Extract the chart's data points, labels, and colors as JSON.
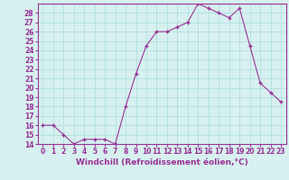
{
  "x": [
    0,
    1,
    2,
    3,
    4,
    5,
    6,
    7,
    8,
    9,
    10,
    11,
    12,
    13,
    14,
    15,
    16,
    17,
    18,
    19,
    20,
    21,
    22,
    23
  ],
  "y": [
    16.0,
    16.0,
    15.0,
    14.0,
    14.5,
    14.5,
    14.5,
    14.0,
    18.0,
    21.5,
    24.5,
    26.0,
    26.0,
    26.5,
    27.0,
    29.0,
    28.5,
    28.0,
    27.5,
    28.5,
    24.5,
    20.5,
    19.5,
    18.5
  ],
  "line_color": "#993399",
  "marker": "+",
  "marker_size": 3,
  "background_color": "#d7f0f0",
  "grid_color": "#aadddd",
  "xlabel": "Windchill (Refroidissement éolien,°C)",
  "xlabel_color": "#993399",
  "tick_color": "#993399",
  "ylim": [
    14,
    29
  ],
  "xlim": [
    -0.5,
    23.5
  ],
  "yticks": [
    14,
    15,
    16,
    17,
    18,
    19,
    20,
    21,
    22,
    23,
    24,
    25,
    26,
    27,
    28
  ],
  "xticks": [
    0,
    1,
    2,
    3,
    4,
    5,
    6,
    7,
    8,
    9,
    10,
    11,
    12,
    13,
    14,
    15,
    16,
    17,
    18,
    19,
    20,
    21,
    22,
    23
  ],
  "tick_fontsize": 5.5,
  "xlabel_fontsize": 6.5
}
